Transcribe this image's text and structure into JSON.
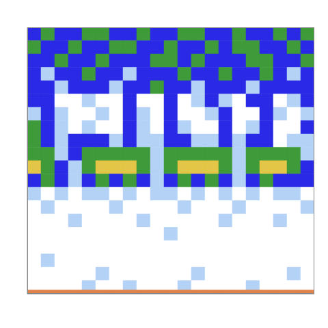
{
  "chart_data": {
    "type": "heatmap",
    "tick_labels": false,
    "xlim": [
      0,
      21
    ],
    "ylim": [
      0,
      40
    ],
    "x_edges": [
      0,
      1,
      2,
      3,
      4,
      5,
      6,
      7,
      8,
      9,
      10,
      11,
      12,
      13,
      14,
      15,
      16,
      17,
      18,
      19,
      20,
      21
    ],
    "y_edges": [
      0,
      2,
      4,
      6,
      8,
      10,
      12,
      14,
      16,
      18,
      20,
      22,
      24,
      26,
      28,
      30,
      32,
      34,
      36,
      38,
      39.4,
      40
    ],
    "zlim": [
      0,
      5
    ],
    "colors": [
      "#ffffff",
      "#b4d2f5",
      "#2a2ae6",
      "#3f9a3a",
      "#e3c547",
      "#e0824a"
    ],
    "cells": [
      [
        2,
        3,
        2,
        2,
        3,
        3,
        2,
        2,
        3,
        2,
        2,
        3,
        3,
        2,
        2,
        3,
        2,
        2,
        3,
        2,
        3
      ],
      [
        3,
        2,
        2,
        3,
        2,
        2,
        3,
        3,
        2,
        2,
        3,
        2,
        2,
        3,
        2,
        3,
        3,
        2,
        2,
        3,
        2
      ],
      [
        2,
        2,
        3,
        2,
        2,
        3,
        2,
        2,
        2,
        3,
        3,
        2,
        3,
        2,
        2,
        2,
        3,
        3,
        2,
        2,
        3
      ],
      [
        2,
        1,
        2,
        2,
        3,
        2,
        2,
        1,
        2,
        2,
        2,
        3,
        2,
        2,
        3,
        2,
        2,
        3,
        2,
        1,
        2
      ],
      [
        2,
        2,
        1,
        2,
        2,
        2,
        1,
        2,
        2,
        3,
        2,
        2,
        1,
        2,
        2,
        2,
        1,
        2,
        2,
        2,
        2
      ],
      [
        2,
        2,
        0,
        0,
        1,
        0,
        0,
        2,
        0,
        0,
        2,
        0,
        1,
        2,
        1,
        0,
        2,
        2,
        0,
        1,
        2
      ],
      [
        1,
        2,
        1,
        0,
        0,
        1,
        0,
        2,
        1,
        0,
        2,
        0,
        0,
        1,
        2,
        0,
        0,
        2,
        1,
        0,
        1
      ],
      [
        3,
        2,
        1,
        0,
        1,
        0,
        0,
        2,
        1,
        0,
        2,
        1,
        0,
        0,
        2,
        0,
        1,
        2,
        0,
        0,
        2
      ],
      [
        3,
        2,
        1,
        2,
        2,
        2,
        1,
        2,
        1,
        1,
        2,
        2,
        1,
        1,
        2,
        1,
        2,
        2,
        0,
        1,
        1
      ],
      [
        3,
        3,
        1,
        2,
        3,
        3,
        3,
        3,
        3,
        1,
        3,
        3,
        3,
        3,
        3,
        1,
        3,
        3,
        3,
        3,
        1
      ],
      [
        4,
        3,
        2,
        1,
        3,
        4,
        4,
        4,
        3,
        1,
        3,
        4,
        4,
        4,
        3,
        1,
        3,
        4,
        4,
        3,
        2
      ],
      [
        2,
        3,
        2,
        1,
        2,
        3,
        2,
        3,
        2,
        1,
        2,
        3,
        2,
        3,
        2,
        1,
        2,
        3,
        2,
        2,
        2
      ],
      [
        1,
        0,
        1,
        0,
        1,
        1,
        0,
        1,
        0,
        1,
        1,
        0,
        1,
        0,
        1,
        0,
        1,
        0,
        1,
        1,
        0
      ],
      [
        0,
        1,
        0,
        0,
        0,
        0,
        1,
        0,
        0,
        0,
        0,
        1,
        0,
        0,
        0,
        1,
        0,
        0,
        0,
        0,
        1
      ],
      [
        0,
        0,
        0,
        1,
        0,
        0,
        0,
        0,
        1,
        0,
        0,
        0,
        0,
        0,
        1,
        0,
        0,
        0,
        1,
        0,
        0
      ],
      [
        0,
        0,
        0,
        0,
        0,
        0,
        0,
        0,
        0,
        0,
        1,
        0,
        0,
        0,
        0,
        0,
        0,
        0,
        0,
        0,
        0
      ],
      [
        0,
        0,
        0,
        0,
        0,
        0,
        0,
        0,
        0,
        0,
        0,
        0,
        0,
        0,
        0,
        0,
        0,
        0,
        0,
        0,
        0
      ],
      [
        0,
        1,
        0,
        0,
        0,
        0,
        0,
        0,
        0,
        0,
        0,
        0,
        0,
        0,
        0,
        0,
        0,
        0,
        0,
        0,
        0
      ],
      [
        0,
        0,
        0,
        0,
        0,
        1,
        0,
        0,
        0,
        0,
        0,
        0,
        1,
        0,
        0,
        0,
        0,
        0,
        0,
        1,
        0
      ],
      [
        0,
        0,
        0,
        0,
        1,
        0,
        0,
        1,
        0,
        0,
        0,
        1,
        0,
        0,
        0,
        0,
        1,
        0,
        0,
        0,
        0
      ],
      [
        5,
        5,
        5,
        5,
        5,
        5,
        5,
        5,
        5,
        5,
        5,
        5,
        5,
        5,
        5,
        5,
        5,
        5,
        5,
        5,
        5
      ]
    ]
  }
}
